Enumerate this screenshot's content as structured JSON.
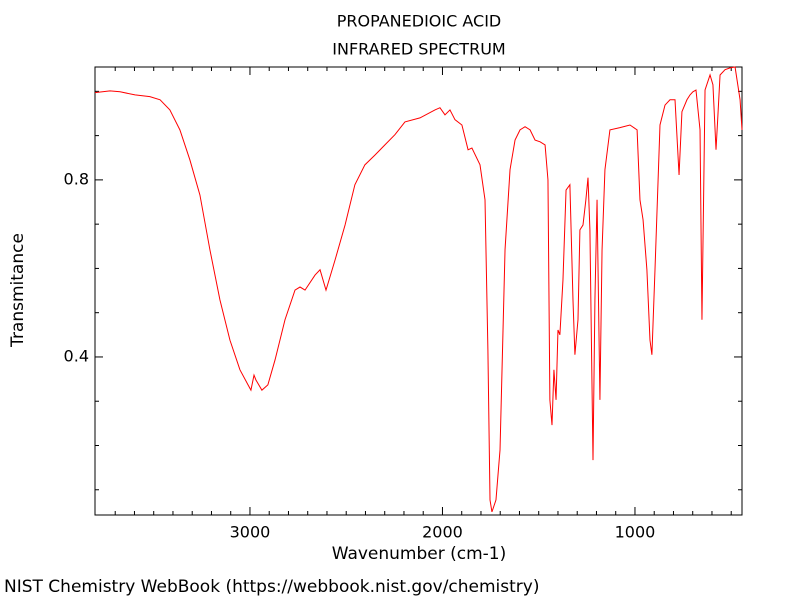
{
  "chart_data": {
    "type": "line",
    "title": "PROPANEDIOIC ACID",
    "subtitle": "INFRARED SPECTRUM",
    "x_label": "Wavenumber (cm-1)",
    "y_label": "Transmitance",
    "footer": "NIST Chemistry WebBook (https://webbook.nist.gov/chemistry)",
    "color": "#ff0000",
    "xlim": [
      3805,
      444
    ],
    "ylim": [
      0.043,
      1.055
    ],
    "xticks": [
      3000,
      2000,
      1000
    ],
    "yticks": [
      0.4,
      0.8
    ],
    "xminorticks": [
      3700,
      3600,
      3500,
      3400,
      3300,
      3200,
      3100,
      2900,
      2800,
      2700,
      2600,
      2500,
      2400,
      2300,
      2200,
      2100,
      1900,
      1800,
      1700,
      1600,
      1500,
      1400,
      1300,
      1200,
      1100,
      900,
      800,
      700,
      600,
      500
    ],
    "yminorticks": [
      0.1,
      0.2,
      0.3,
      0.5,
      0.6,
      0.7,
      0.9,
      1.0
    ],
    "x": [
      3805,
      3727,
      3675,
      3597,
      3520,
      3467,
      3416,
      3364,
      3312,
      3260,
      3208,
      3156,
      3104,
      3052,
      3010,
      2995,
      2979,
      2969,
      2938,
      2907,
      2870,
      2818,
      2766,
      2740,
      2714,
      2662,
      2636,
      2605,
      2558,
      2506,
      2455,
      2403,
      2351,
      2299,
      2247,
      2195,
      2117,
      2039,
      2013,
      1987,
      1961,
      1935,
      1899,
      1867,
      1847,
      1805,
      1779,
      1764,
      1753,
      1743,
      1722,
      1701,
      1675,
      1649,
      1623,
      1597,
      1571,
      1545,
      1519,
      1493,
      1467,
      1452,
      1442,
      1431,
      1421,
      1410,
      1400,
      1390,
      1374,
      1358,
      1338,
      1322,
      1312,
      1296,
      1286,
      1270,
      1255,
      1244,
      1234,
      1218,
      1208,
      1197,
      1182,
      1171,
      1156,
      1130,
      1078,
      1026,
      989,
      974,
      958,
      938,
      922,
      912,
      896,
      870,
      844,
      818,
      792,
      771,
      756,
      730,
      714,
      699,
      683,
      662,
      652,
      636,
      610,
      595,
      579,
      569,
      558,
      532,
      506,
      480,
      454,
      444
    ],
    "values": [
      0.997,
      1.001,
      0.999,
      0.992,
      0.988,
      0.981,
      0.958,
      0.913,
      0.845,
      0.766,
      0.642,
      0.529,
      0.438,
      0.371,
      0.337,
      0.325,
      0.359,
      0.348,
      0.325,
      0.337,
      0.393,
      0.484,
      0.551,
      0.558,
      0.551,
      0.585,
      0.597,
      0.551,
      0.619,
      0.698,
      0.789,
      0.834,
      0.856,
      0.879,
      0.902,
      0.931,
      0.94,
      0.958,
      0.963,
      0.947,
      0.958,
      0.936,
      0.924,
      0.868,
      0.872,
      0.834,
      0.755,
      0.416,
      0.077,
      0.05,
      0.077,
      0.19,
      0.642,
      0.823,
      0.89,
      0.913,
      0.92,
      0.913,
      0.89,
      0.886,
      0.879,
      0.8,
      0.303,
      0.246,
      0.371,
      0.303,
      0.461,
      0.45,
      0.574,
      0.777,
      0.789,
      0.529,
      0.405,
      0.484,
      0.687,
      0.698,
      0.755,
      0.805,
      0.687,
      0.167,
      0.529,
      0.755,
      0.303,
      0.642,
      0.823,
      0.913,
      0.918,
      0.924,
      0.913,
      0.755,
      0.71,
      0.597,
      0.438,
      0.405,
      0.597,
      0.924,
      0.969,
      0.981,
      0.981,
      0.811,
      0.954,
      0.981,
      0.992,
      0.999,
      1.003,
      0.913,
      0.484,
      1.003,
      1.037,
      1.015,
      0.868,
      0.947,
      1.037,
      1.049,
      1.053,
      1.055,
      0.981,
      0.913
    ]
  }
}
